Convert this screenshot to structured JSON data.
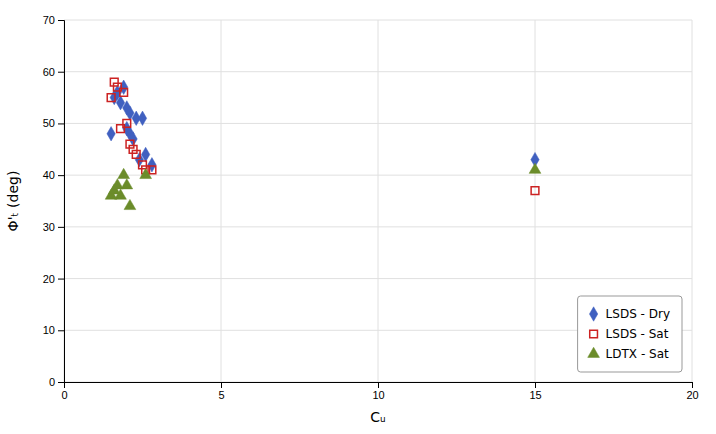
{
  "chart_data": {
    "type": "scatter",
    "xlabel": "Cᵤ",
    "ylabel": "Φ'ₜ (deg)",
    "xlim": [
      0,
      20
    ],
    "ylim": [
      0,
      70
    ],
    "xticks": [
      0,
      5,
      10,
      15,
      20
    ],
    "yticks": [
      0,
      10,
      20,
      30,
      40,
      50,
      60,
      70
    ],
    "grid": true,
    "legend": "lower right",
    "series": [
      {
        "name": "LSDS - Dry",
        "color": "#4060c0",
        "marker": "diamond",
        "x": [
          1.5,
          1.6,
          1.7,
          1.8,
          1.9,
          2.0,
          2.0,
          2.1,
          2.1,
          2.2,
          2.3,
          2.4,
          2.5,
          2.6,
          2.8,
          15.0
        ],
        "values": [
          48,
          55,
          56,
          54,
          57,
          53,
          49,
          52,
          48,
          47,
          51,
          43,
          51,
          44,
          42,
          43
        ]
      },
      {
        "name": "LSDS - Sat",
        "color": "#cc2222",
        "marker": "square-open",
        "x": [
          1.5,
          1.6,
          1.7,
          1.8,
          1.9,
          2.0,
          2.1,
          2.2,
          2.3,
          2.5,
          2.6,
          2.8,
          15.0
        ],
        "values": [
          55,
          58,
          57,
          49,
          56,
          50,
          46,
          45,
          44,
          42,
          41,
          41,
          37
        ]
      },
      {
        "name": "LDTX - Sat",
        "color": "#6b8c2a",
        "marker": "triangle",
        "x": [
          1.5,
          1.6,
          1.7,
          1.8,
          1.9,
          2.0,
          2.1,
          2.6,
          15.0
        ],
        "values": [
          36,
          37,
          38,
          36,
          40,
          38,
          34,
          40,
          41
        ]
      }
    ]
  }
}
